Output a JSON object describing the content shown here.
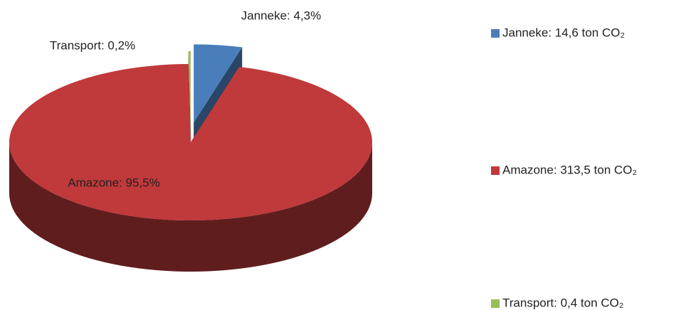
{
  "chart_data": {
    "type": "pie",
    "categories": [
      "Janneke",
      "Amazone",
      "Transport"
    ],
    "values": [
      4.3,
      95.5,
      0.2
    ],
    "value_labels": [
      "Janneke: 4,3%",
      "Amazone: 95,5%",
      "Transport: 0,2%"
    ],
    "legend_labels": [
      "Janneke: 14,6 ton CO₂",
      "Amazone: 313,5 ton CO₂",
      "Transport: 0,4 ton CO₂"
    ],
    "colors": [
      "#4a7ebb",
      "#c0393b",
      "#9bbb59"
    ]
  }
}
